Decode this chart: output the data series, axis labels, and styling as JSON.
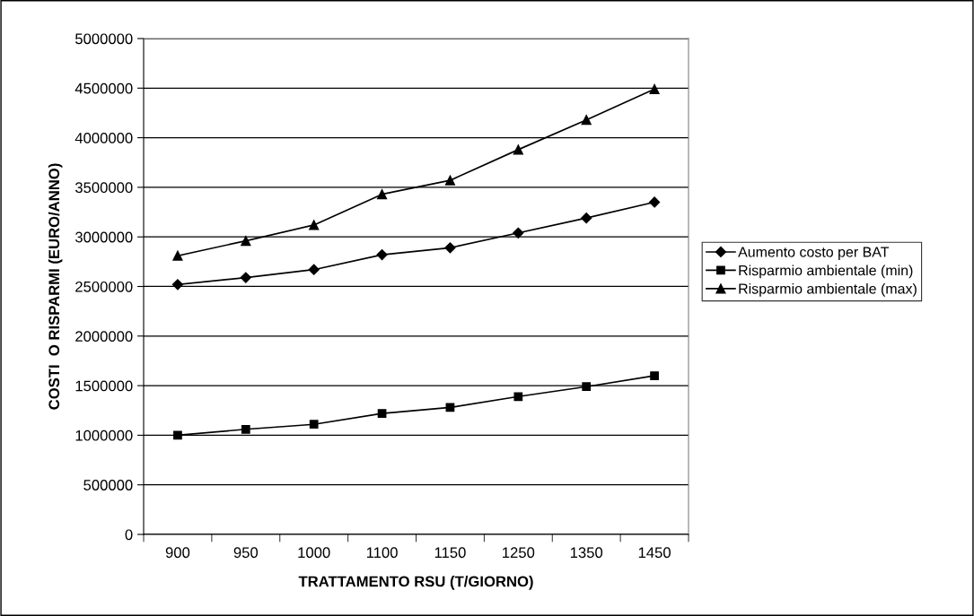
{
  "chart_data": {
    "type": "line",
    "xlabel": "TRATTAMENTO RSU (T/GIORNO)",
    "ylabel": "COSTI  O RISPARMI (EURO/ANNO)",
    "categories": [
      "900",
      "950",
      "1000",
      "1100",
      "1150",
      "1250",
      "1350",
      "1450"
    ],
    "series": [
      {
        "name": "Aumento costo per BAT",
        "color": "#000000",
        "marker": "diamond",
        "values": [
          2520000,
          2590000,
          2670000,
          2820000,
          2890000,
          3040000,
          3190000,
          3350000
        ]
      },
      {
        "name": "Risparmio ambientale (min)",
        "color": "#000000",
        "marker": "square",
        "values": [
          1000000,
          1060000,
          1110000,
          1220000,
          1280000,
          1390000,
          1490000,
          1600000
        ]
      },
      {
        "name": "Risparmio ambientale (max)",
        "color": "#000000",
        "marker": "triangle",
        "values": [
          2810000,
          2960000,
          3120000,
          3430000,
          3570000,
          3880000,
          4180000,
          4490000
        ]
      }
    ],
    "ylim": [
      0,
      5000000
    ],
    "yticks": [
      0,
      500000,
      1000000,
      1500000,
      2000000,
      2500000,
      3000000,
      3500000,
      4000000,
      4500000,
      5000000
    ],
    "grid": "y",
    "legend": "right",
    "line_style": "solid"
  }
}
